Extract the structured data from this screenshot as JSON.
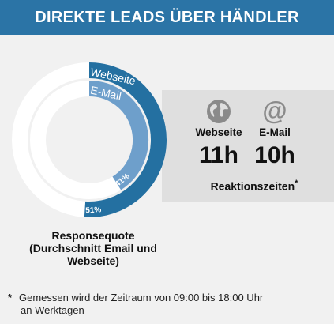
{
  "header": {
    "title": "DIREKTE LEADS ÜBER HÄNDLER"
  },
  "colors": {
    "header_bg": "#2b74a6",
    "webseite": "#2470a1",
    "email": "#6e9fcb",
    "ring_track": "#ffffff",
    "panel": "#dfdfdf"
  },
  "chart_data": {
    "type": "donut",
    "title": "Responsequote",
    "series": [
      {
        "name": "Webseite",
        "value": 51,
        "label": "51%"
      },
      {
        "name": "E-Mail",
        "value": 41,
        "label": "41%"
      }
    ],
    "caption_lines": [
      "Responsequote",
      "(Durchschnitt Email und",
      "Webseite)"
    ]
  },
  "reaktionszeiten": {
    "label": "Reaktionszeiten",
    "label_mark": "*",
    "items": [
      {
        "label": "Webseite",
        "value": "11h",
        "icon": "globe-icon"
      },
      {
        "label": "E-Mail",
        "value": "10h",
        "icon": "at-icon"
      }
    ]
  },
  "footnote": {
    "star": "*",
    "line1": "Gemessen wird der Zeitraum von 09:00 bis 18:00 Uhr",
    "line2": "an Werktagen"
  }
}
